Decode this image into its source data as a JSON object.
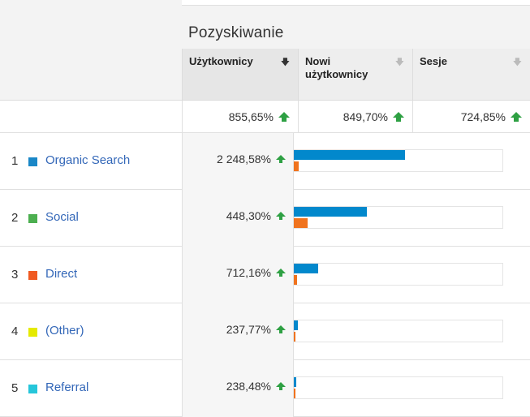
{
  "header": {
    "group_title": "Pozyskiwanie",
    "columns": [
      {
        "label": "Użytkownicy",
        "sorted": true
      },
      {
        "label": "Nowi\nużytkownicy",
        "sorted": false
      },
      {
        "label": "Sesje",
        "sorted": false
      }
    ]
  },
  "totals": {
    "users": "855,65%",
    "new_users": "849,70%",
    "sessions": "724,85%"
  },
  "colors": {
    "blue": "#0288cc",
    "orange": "#f0731e",
    "arrow": "#2ea043",
    "link": "#3367b8"
  },
  "rows": [
    {
      "rank": "1",
      "source": "Organic Search",
      "swatch": "#1a87c7",
      "pct": "2 248,58%",
      "blue_share": 0.53,
      "orange_share": 0.025
    },
    {
      "rank": "2",
      "source": "Social",
      "swatch": "#4caf50",
      "pct": "448,30%",
      "blue_share": 0.35,
      "orange_share": 0.065
    },
    {
      "rank": "3",
      "source": "Direct",
      "swatch": "#f05a22",
      "pct": "712,16%",
      "blue_share": 0.115,
      "orange_share": 0.015
    },
    {
      "rank": "4",
      "source": "(Other)",
      "swatch": "#e5ea00",
      "pct": "237,77%",
      "blue_share": 0.02,
      "orange_share": 0.005
    },
    {
      "rank": "5",
      "source": "Referral",
      "swatch": "#26c6da",
      "pct": "238,48%",
      "blue_share": 0.012,
      "orange_share": 0.004
    }
  ]
}
